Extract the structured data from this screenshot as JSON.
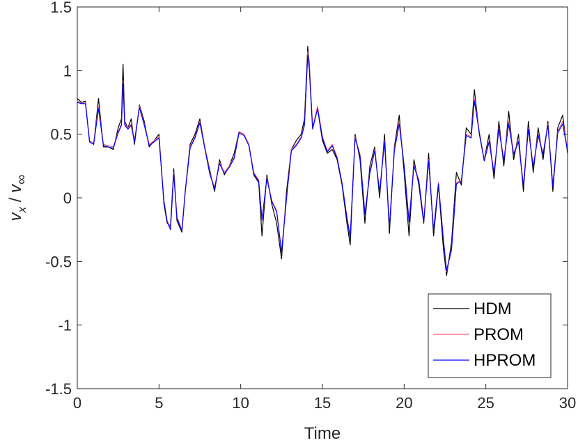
{
  "chart_data": {
    "type": "line",
    "title": "",
    "xlabel": "Time",
    "ylabel": {
      "base": "v",
      "sub_num": "x",
      "sep": " / ",
      "sub_den": "∞"
    },
    "xlim": [
      0,
      30
    ],
    "ylim": [
      -1.5,
      1.5
    ],
    "xticks": [
      0,
      5,
      10,
      15,
      20,
      25,
      30
    ],
    "xtick_labels": [
      "0",
      "5",
      "10",
      "15",
      "20",
      "25",
      "30"
    ],
    "yticks": [
      -1.5,
      -1,
      -0.5,
      0,
      0.5,
      1,
      1.5
    ],
    "ytick_labels": [
      "-1.5",
      "-1",
      "-0.5",
      "0",
      "0.5",
      "1",
      "1.5"
    ],
    "grid": false,
    "legend_position": "bottom-right",
    "series": [
      {
        "name": "HDM",
        "color": "#000000",
        "x": [
          0,
          0.25,
          0.5,
          0.75,
          1,
          1.3,
          1.6,
          1.9,
          2.2,
          2.5,
          2.7,
          2.8,
          2.9,
          3.1,
          3.3,
          3.5,
          3.8,
          4.1,
          4.4,
          4.7,
          5,
          5.3,
          5.5,
          5.7,
          5.9,
          6.1,
          6.4,
          6.6,
          6.9,
          7.2,
          7.5,
          7.8,
          8.1,
          8.4,
          8.7,
          9,
          9.3,
          9.6,
          9.9,
          10.2,
          10.5,
          10.8,
          11.1,
          11.3,
          11.6,
          11.9,
          12.2,
          12.5,
          12.8,
          13.1,
          13.4,
          13.7,
          13.9,
          14.1,
          14.2,
          14.4,
          14.7,
          15,
          15.3,
          15.6,
          15.9,
          16.2,
          16.5,
          16.7,
          17,
          17.3,
          17.6,
          17.9,
          18.2,
          18.5,
          18.8,
          19.1,
          19.4,
          19.7,
          20,
          20.3,
          20.6,
          20.9,
          21.2,
          21.5,
          21.8,
          22.1,
          22.4,
          22.6,
          22.9,
          23.2,
          23.5,
          23.8,
          24.1,
          24.3,
          24.6,
          24.9,
          25.2,
          25.5,
          25.8,
          26.1,
          26.4,
          26.7,
          27,
          27.3,
          27.6,
          27.9,
          28.2,
          28.5,
          28.8,
          29.1,
          29.4,
          29.7,
          30
        ],
        "y": [
          0.78,
          0.75,
          0.76,
          0.44,
          0.42,
          0.78,
          0.4,
          0.4,
          0.38,
          0.55,
          0.62,
          1.05,
          0.6,
          0.55,
          0.62,
          0.42,
          0.73,
          0.6,
          0.4,
          0.45,
          0.5,
          -0.05,
          -0.2,
          -0.22,
          0.23,
          -0.18,
          -0.27,
          0.05,
          0.42,
          0.5,
          0.62,
          0.4,
          0.22,
          0.05,
          0.3,
          0.18,
          0.25,
          0.35,
          0.52,
          0.5,
          0.42,
          0.18,
          0.12,
          -0.3,
          0.18,
          -0.05,
          -0.2,
          -0.48,
          0.05,
          0.38,
          0.45,
          0.5,
          0.62,
          1.19,
          1.05,
          0.55,
          0.7,
          0.45,
          0.35,
          0.38,
          0.3,
          0.1,
          -0.2,
          -0.37,
          0.5,
          0.3,
          -0.2,
          0.25,
          0.4,
          0.0,
          0.5,
          -0.28,
          0.4,
          0.65,
          0.2,
          -0.3,
          0.3,
          0.1,
          -0.2,
          0.35,
          -0.3,
          0.1,
          -0.4,
          -0.61,
          -0.35,
          0.2,
          0.1,
          0.55,
          0.5,
          0.85,
          0.5,
          0.3,
          0.5,
          0.15,
          0.6,
          0.25,
          0.68,
          0.3,
          0.5,
          0.05,
          0.6,
          0.2,
          0.55,
          0.3,
          0.6,
          0.05,
          0.55,
          0.65,
          0.35
        ],
        "stroke_width": 1.2
      },
      {
        "name": "PROM",
        "color": "#ff5a78",
        "x": [
          0,
          0.25,
          0.5,
          0.75,
          1,
          1.3,
          1.6,
          1.9,
          2.2,
          2.5,
          2.7,
          2.8,
          2.9,
          3.1,
          3.3,
          3.5,
          3.8,
          4.1,
          4.4,
          4.7,
          5,
          5.3,
          5.5,
          5.7,
          5.9,
          6.1,
          6.4,
          6.6,
          6.9,
          7.2,
          7.5,
          7.8,
          8.1,
          8.4,
          8.7,
          9,
          9.3,
          9.6,
          9.9,
          10.2,
          10.5,
          10.8,
          11.1,
          11.3,
          11.6,
          11.9,
          12.2,
          12.5,
          12.8,
          13.1,
          13.4,
          13.7,
          13.9,
          14.1,
          14.2,
          14.4,
          14.7,
          15,
          15.3,
          15.6,
          15.9,
          16.2,
          16.5,
          16.7,
          17,
          17.3,
          17.6,
          17.9,
          18.2,
          18.5,
          18.8,
          19.1,
          19.4,
          19.7,
          20,
          20.3,
          20.6,
          20.9,
          21.2,
          21.5,
          21.8,
          22.1,
          22.4,
          22.6,
          22.9,
          23.2,
          23.5,
          23.8,
          24.1,
          24.3,
          24.6,
          24.9,
          25.2,
          25.5,
          25.8,
          26.1,
          26.4,
          26.7,
          27,
          27.3,
          27.6,
          27.9,
          28.2,
          28.5,
          28.8,
          29.1,
          29.4,
          29.7,
          30
        ],
        "y": [
          0.76,
          0.74,
          0.75,
          0.45,
          0.43,
          0.72,
          0.42,
          0.41,
          0.4,
          0.52,
          0.58,
          0.92,
          0.58,
          0.55,
          0.58,
          0.45,
          0.72,
          0.58,
          0.42,
          0.45,
          0.48,
          -0.02,
          -0.18,
          -0.24,
          0.2,
          -0.15,
          -0.25,
          0.05,
          0.4,
          0.48,
          0.6,
          0.4,
          0.2,
          0.08,
          0.28,
          0.2,
          0.25,
          0.32,
          0.52,
          0.5,
          0.42,
          0.2,
          0.14,
          -0.18,
          0.16,
          -0.02,
          -0.1,
          -0.42,
          0.0,
          0.38,
          0.42,
          0.48,
          0.58,
          1.15,
          1.02,
          0.55,
          0.72,
          0.48,
          0.37,
          0.42,
          0.32,
          0.12,
          -0.15,
          -0.3,
          0.48,
          0.34,
          -0.12,
          0.2,
          0.38,
          0.05,
          0.45,
          -0.22,
          0.38,
          0.6,
          0.26,
          -0.18,
          0.26,
          0.14,
          -0.18,
          0.3,
          -0.25,
          0.12,
          -0.32,
          -0.58,
          -0.4,
          0.12,
          0.14,
          0.5,
          0.48,
          0.78,
          0.52,
          0.3,
          0.45,
          0.2,
          0.55,
          0.3,
          0.6,
          0.35,
          0.45,
          0.1,
          0.55,
          0.25,
          0.5,
          0.35,
          0.58,
          0.1,
          0.52,
          0.6,
          0.38
        ],
        "stroke_width": 1.2
      },
      {
        "name": "HPROM",
        "color": "#0000ff",
        "x": [
          0,
          0.25,
          0.5,
          0.75,
          1,
          1.3,
          1.6,
          1.9,
          2.2,
          2.5,
          2.7,
          2.8,
          2.9,
          3.1,
          3.3,
          3.5,
          3.8,
          4.1,
          4.4,
          4.7,
          5,
          5.3,
          5.5,
          5.7,
          5.9,
          6.1,
          6.4,
          6.6,
          6.9,
          7.2,
          7.5,
          7.8,
          8.1,
          8.4,
          8.7,
          9,
          9.3,
          9.6,
          9.9,
          10.2,
          10.5,
          10.8,
          11.1,
          11.3,
          11.6,
          11.9,
          12.2,
          12.5,
          12.8,
          13.1,
          13.4,
          13.7,
          13.9,
          14.1,
          14.2,
          14.4,
          14.7,
          15,
          15.3,
          15.6,
          15.9,
          16.2,
          16.5,
          16.7,
          17,
          17.3,
          17.6,
          17.9,
          18.2,
          18.5,
          18.8,
          19.1,
          19.4,
          19.7,
          20,
          20.3,
          20.6,
          20.9,
          21.2,
          21.5,
          21.8,
          22.1,
          22.4,
          22.6,
          22.9,
          23.2,
          23.5,
          23.8,
          24.1,
          24.3,
          24.6,
          24.9,
          25.2,
          25.5,
          25.8,
          26.1,
          26.4,
          26.7,
          27,
          27.3,
          27.6,
          27.9,
          28.2,
          28.5,
          28.8,
          29.1,
          29.4,
          29.7,
          30
        ],
        "y": [
          0.75,
          0.74,
          0.74,
          0.44,
          0.42,
          0.7,
          0.41,
          0.4,
          0.39,
          0.51,
          0.57,
          0.9,
          0.57,
          0.54,
          0.57,
          0.44,
          0.71,
          0.57,
          0.41,
          0.44,
          0.47,
          -0.03,
          -0.19,
          -0.25,
          0.19,
          -0.16,
          -0.26,
          0.04,
          0.39,
          0.47,
          0.59,
          0.39,
          0.19,
          0.07,
          0.27,
          0.19,
          0.24,
          0.31,
          0.51,
          0.49,
          0.41,
          0.19,
          0.13,
          -0.17,
          0.15,
          -0.03,
          -0.11,
          -0.43,
          -0.01,
          0.37,
          0.41,
          0.47,
          0.57,
          1.12,
          1.0,
          0.54,
          0.7,
          0.47,
          0.36,
          0.41,
          0.31,
          0.11,
          -0.16,
          -0.31,
          0.47,
          0.33,
          -0.13,
          0.19,
          0.37,
          0.04,
          0.44,
          -0.23,
          0.37,
          0.58,
          0.25,
          -0.19,
          0.25,
          0.13,
          -0.19,
          0.29,
          -0.26,
          0.11,
          -0.33,
          -0.57,
          -0.41,
          0.11,
          0.13,
          0.49,
          0.47,
          0.76,
          0.51,
          0.29,
          0.44,
          0.19,
          0.54,
          0.29,
          0.58,
          0.34,
          0.44,
          0.09,
          0.54,
          0.24,
          0.49,
          0.34,
          0.57,
          0.09,
          0.51,
          0.58,
          0.37
        ],
        "stroke_width": 1.2
      }
    ]
  }
}
